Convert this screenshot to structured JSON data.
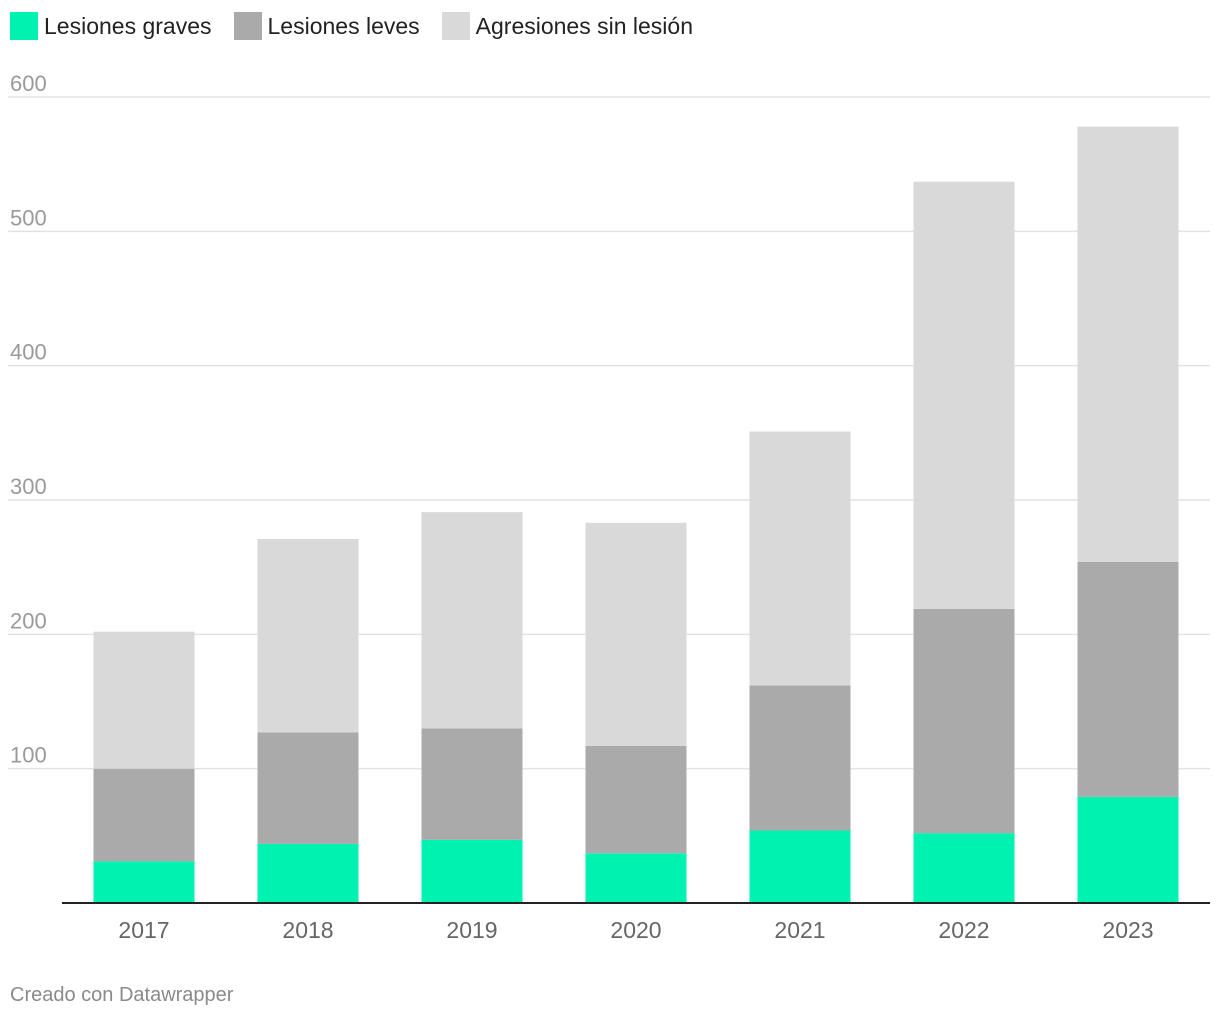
{
  "chart_data": {
    "type": "bar",
    "stacked": true,
    "categories": [
      "2017",
      "2018",
      "2019",
      "2020",
      "2021",
      "2022",
      "2023"
    ],
    "series": [
      {
        "name": "Lesiones graves",
        "color": "#00f2b0",
        "values": [
          31,
          44,
          47,
          37,
          54,
          52,
          79
        ]
      },
      {
        "name": "Lesiones leves",
        "color": "#aaaaaa",
        "values": [
          69,
          83,
          83,
          80,
          108,
          167,
          175
        ]
      },
      {
        "name": "Agresiones sin lesión",
        "color": "#d9d9d9",
        "values": [
          102,
          144,
          161,
          166,
          189,
          318,
          324
        ]
      }
    ],
    "ylim": [
      0,
      600
    ],
    "yticks": [
      100,
      200,
      300,
      400,
      500,
      600
    ],
    "grid": true,
    "legend": "top-left"
  },
  "credit": "Creado con Datawrapper"
}
